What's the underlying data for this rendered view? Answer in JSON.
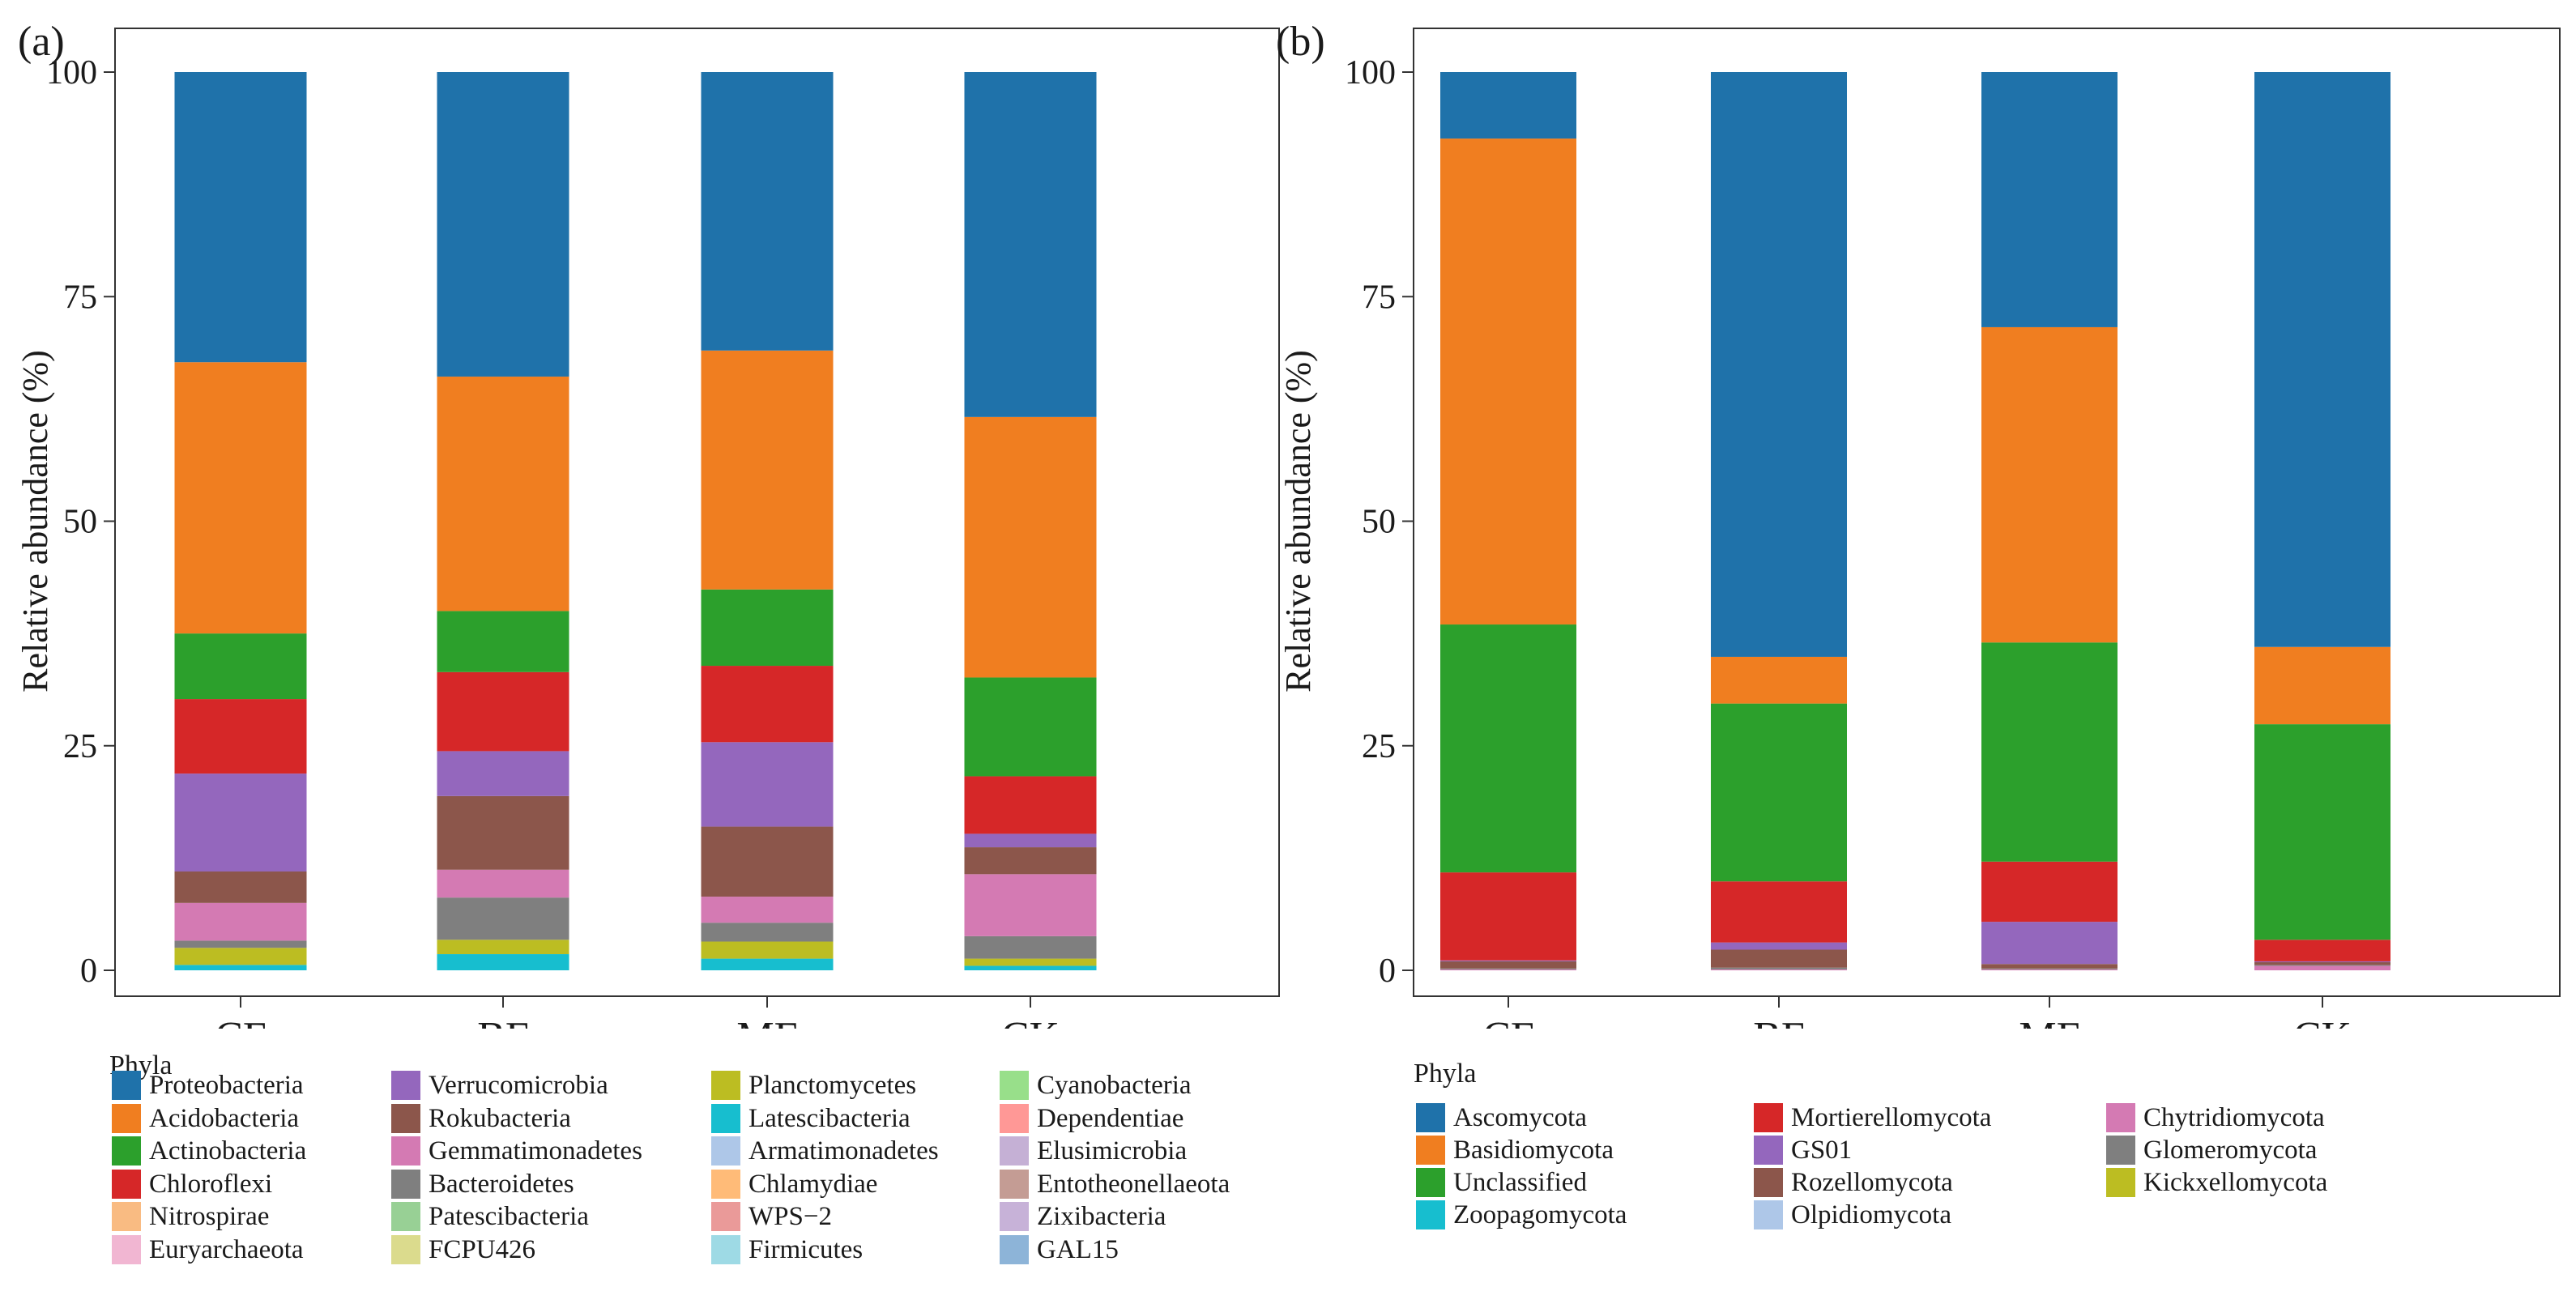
{
  "chart_data": [
    {
      "type": "bar",
      "panel_label": "(a)",
      "categories": [
        "CF",
        "BF",
        "MF",
        "CK"
      ],
      "ylabel": "Relative abundance (%)",
      "ylim": [
        0,
        100
      ],
      "yticks": [
        0,
        25,
        50,
        75,
        100
      ],
      "stacked": true,
      "legend_title": "Phyla",
      "series": [
        {
          "name": "Latescibacteria",
          "color": "#17becf",
          "values": [
            0.6,
            1.8,
            1.3,
            0.5
          ]
        },
        {
          "name": "Planctomycetes",
          "color": "#bcbd22",
          "values": [
            1.9,
            1.6,
            1.9,
            0.8
          ]
        },
        {
          "name": "Bacteroidetes",
          "color": "#7f7f7f",
          "values": [
            0.8,
            4.7,
            2.1,
            2.5
          ]
        },
        {
          "name": "Gemmatimonadetes",
          "color": "#d47ab3",
          "values": [
            4.2,
            3.1,
            2.9,
            6.9
          ]
        },
        {
          "name": "Rokubacteria",
          "color": "#8c564b",
          "values": [
            3.5,
            8.2,
            7.8,
            3.0
          ]
        },
        {
          "name": "Verrucomicrobia",
          "color": "#9467bd",
          "values": [
            10.9,
            5.0,
            9.4,
            1.5
          ]
        },
        {
          "name": "Chloroflexi",
          "color": "#d62728",
          "values": [
            8.3,
            8.8,
            8.5,
            6.4
          ]
        },
        {
          "name": "Actinobacteria",
          "color": "#2ca02c",
          "values": [
            7.3,
            6.8,
            8.5,
            11.0
          ]
        },
        {
          "name": "Acidobacteria",
          "color": "#f07e20",
          "values": [
            30.2,
            26.1,
            26.6,
            29.0
          ]
        },
        {
          "name": "Proteobacteria",
          "color": "#1f72aa",
          "values": [
            32.3,
            33.9,
            31.0,
            38.4
          ]
        }
      ],
      "legend": [
        {
          "name": "Proteobacteria",
          "color": "#1f72aa"
        },
        {
          "name": "Acidobacteria",
          "color": "#f07e20"
        },
        {
          "name": "Actinobacteria",
          "color": "#2ca02c"
        },
        {
          "name": "Chloroflexi",
          "color": "#d62728"
        },
        {
          "name": "Nitrospirae",
          "color": "#f9bb82"
        },
        {
          "name": "Euryarchaeota",
          "color": "#f1b6d2"
        },
        {
          "name": "Verrucomicrobia",
          "color": "#9467bd"
        },
        {
          "name": "Rokubacteria",
          "color": "#8c564b"
        },
        {
          "name": "Gemmatimonadetes",
          "color": "#d47ab3"
        },
        {
          "name": "Bacteroidetes",
          "color": "#7f7f7f"
        },
        {
          "name": "Patescibacteria",
          "color": "#98d095"
        },
        {
          "name": "FCPU426",
          "color": "#dbdb8d"
        },
        {
          "name": "Planctomycetes",
          "color": "#bcbd22"
        },
        {
          "name": "Latescibacteria",
          "color": "#17becf"
        },
        {
          "name": "Armatimonadetes",
          "color": "#aec7e8"
        },
        {
          "name": "Chlamydiae",
          "color": "#ffbb78"
        },
        {
          "name": "WPS−2",
          "color": "#ea9a99"
        },
        {
          "name": "Firmicutes",
          "color": "#9edae5"
        },
        {
          "name": "Cyanobacteria",
          "color": "#98df8a"
        },
        {
          "name": "Dependentiae",
          "color": "#ff9896"
        },
        {
          "name": "Elusimicrobia",
          "color": "#c5b0d5"
        },
        {
          "name": "Entotheonellaeota",
          "color": "#c49c94"
        },
        {
          "name": "Zixibacteria",
          "color": "#c7b2d8"
        },
        {
          "name": "GAL15",
          "color": "#8db4d8"
        }
      ]
    },
    {
      "type": "bar",
      "panel_label": "(b)",
      "categories": [
        "CF",
        "BF",
        "MF",
        "CK"
      ],
      "ylabel": "Relative abundance (%)",
      "ylim": [
        0,
        100
      ],
      "yticks": [
        0,
        25,
        50,
        75,
        100
      ],
      "stacked": true,
      "legend_title": "Phyla",
      "series": [
        {
          "name": "Chytridiomycota",
          "color": "#d47ab3",
          "values": [
            0.1,
            0.1,
            0.1,
            0.5
          ]
        },
        {
          "name": "Glomeromycota",
          "color": "#7f7f7f",
          "values": [
            0.1,
            0.2,
            0.1,
            0.1
          ]
        },
        {
          "name": "Rozellomycota",
          "color": "#8c564b",
          "values": [
            0.8,
            2.0,
            0.5,
            0.3
          ]
        },
        {
          "name": "GS01",
          "color": "#9467bd",
          "values": [
            0.1,
            0.8,
            4.7,
            0.1
          ]
        },
        {
          "name": "Mortierellomycota",
          "color": "#d62728",
          "values": [
            9.8,
            6.8,
            6.7,
            2.4
          ]
        },
        {
          "name": "Unclassified",
          "color": "#2ca02c",
          "values": [
            27.6,
            19.8,
            24.4,
            24.0
          ]
        },
        {
          "name": "Basidiomycota",
          "color": "#f07e20",
          "values": [
            54.1,
            5.2,
            35.1,
            8.6
          ]
        },
        {
          "name": "Ascomycota",
          "color": "#1f72aa",
          "values": [
            7.4,
            65.1,
            28.4,
            64.0
          ]
        }
      ],
      "legend": [
        {
          "name": "Ascomycota",
          "color": "#1f72aa"
        },
        {
          "name": "Basidiomycota",
          "color": "#f07e20"
        },
        {
          "name": "Unclassified",
          "color": "#2ca02c"
        },
        {
          "name": "Zoopagomycota",
          "color": "#17becf"
        },
        {
          "name": "Mortierellomycota",
          "color": "#d62728"
        },
        {
          "name": "GS01",
          "color": "#9467bd"
        },
        {
          "name": "Rozellomycota",
          "color": "#8c564b"
        },
        {
          "name": "Olpidiomycota",
          "color": "#aec7e8"
        },
        {
          "name": "Chytridiomycota",
          "color": "#d47ab3"
        },
        {
          "name": "Glomeromycota",
          "color": "#7f7f7f"
        },
        {
          "name": "Kickxellomycota",
          "color": "#bcbd22"
        }
      ]
    }
  ]
}
